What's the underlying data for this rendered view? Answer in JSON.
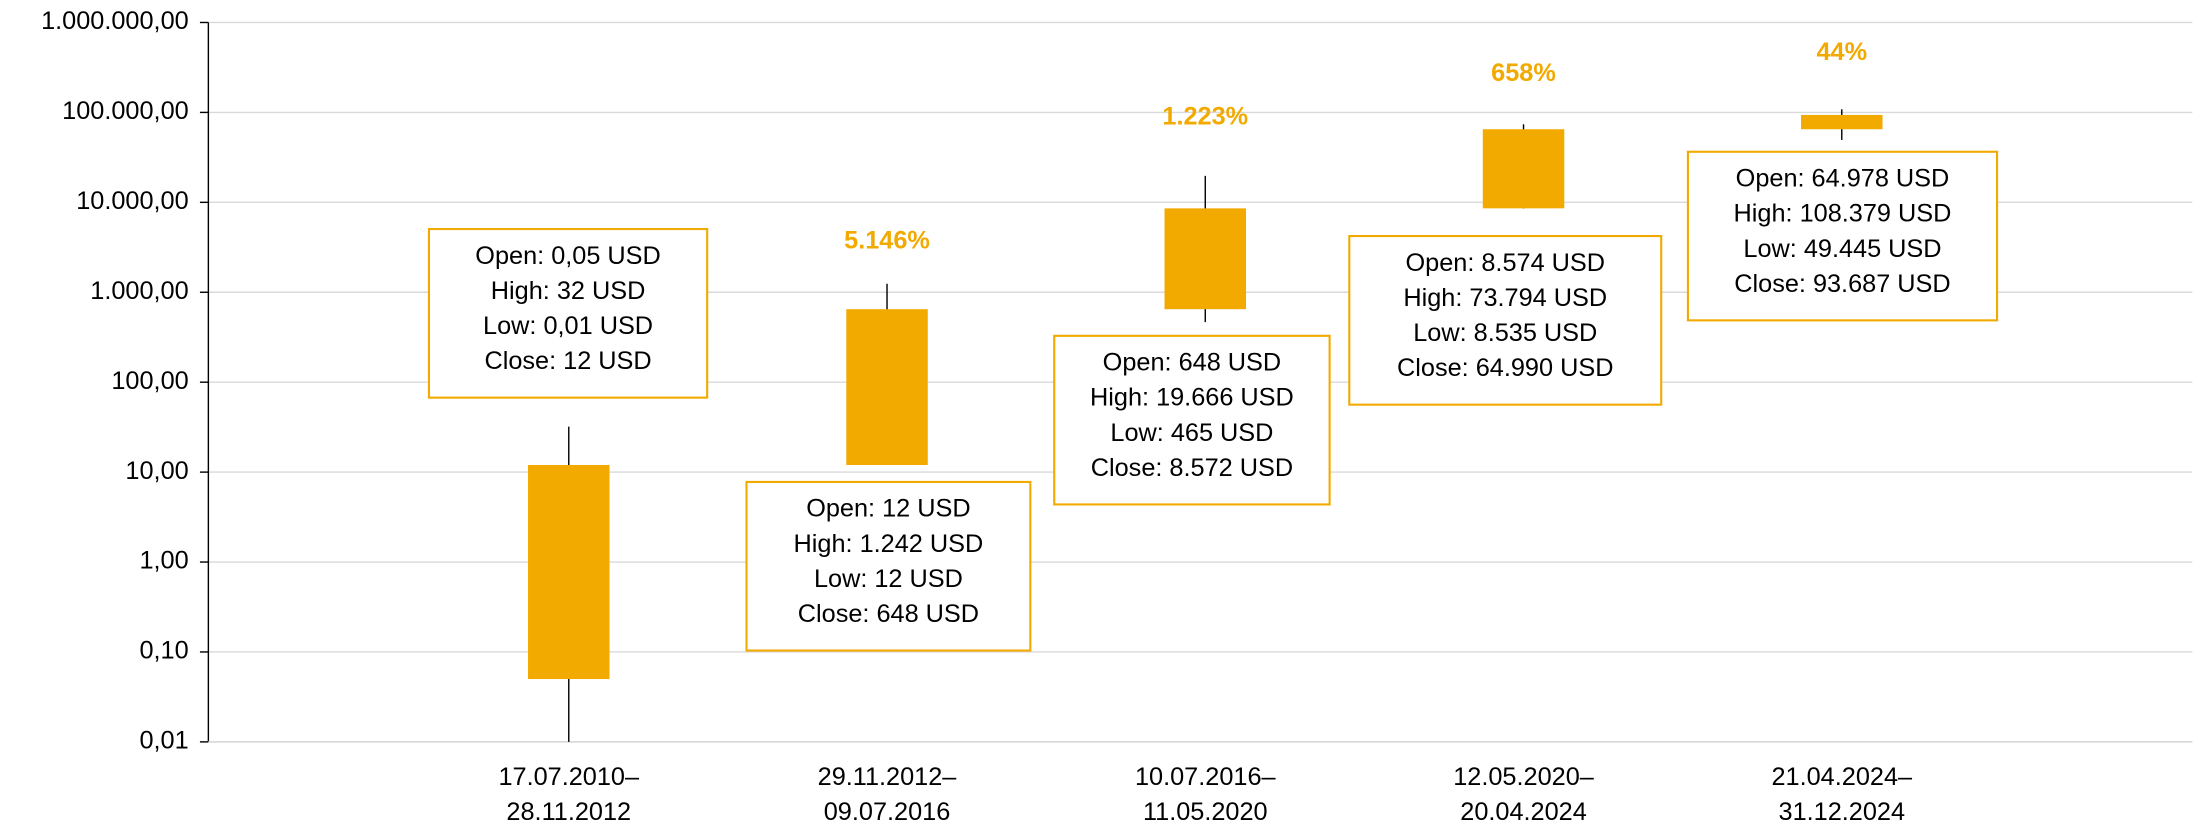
{
  "chart_data": {
    "type": "candlestick",
    "categories": [
      [
        "17.07.2010–",
        "28.11.2012"
      ],
      [
        "29.11.2012–",
        "09.07.2016"
      ],
      [
        "10.07.2016–",
        "11.05.2020"
      ],
      [
        "12.05.2020–",
        "20.04.2024"
      ],
      [
        "21.04.2024–",
        "31.12.2024"
      ]
    ],
    "open": [
      0.05,
      12,
      648,
      8574,
      64978
    ],
    "high": [
      32,
      1242,
      19666,
      73794,
      108379
    ],
    "low": [
      0.01,
      12,
      465,
      8535,
      49445
    ],
    "close": [
      12,
      648,
      8572,
      64990,
      93687
    ],
    "color": "#f2aa00",
    "change_labels": [
      null,
      "5.146%",
      "1.223%",
      "658%",
      "44%"
    ],
    "info_labels": [
      [
        "Open: 0,05 USD",
        "High: 32 USD",
        "Low: 0,01 USD",
        "Close: 12 USD"
      ],
      [
        "Open: 12 USD",
        "High: 1.242 USD",
        "Low: 12 USD",
        "Close: 648 USD"
      ],
      [
        "Open: 648 USD",
        "High: 19.666 USD",
        "Low: 465 USD",
        "Close: 8.572 USD"
      ],
      [
        "Open: 8.574 USD",
        "High: 73.794 USD",
        "Low: 8.535 USD",
        "Close: 64.990 USD"
      ],
      [
        "Open: 64.978 USD",
        "High: 108.379 USD",
        "Low: 49.445 USD",
        "Close: 93.687 USD"
      ]
    ],
    "ylim": [
      0.01,
      1000000
    ],
    "yticks": [
      {
        "value": 0.01,
        "label": "0,01"
      },
      {
        "value": 0.1,
        "label": "0,10"
      },
      {
        "value": 1,
        "label": "1,00"
      },
      {
        "value": 10,
        "label": "10,00"
      },
      {
        "value": 100,
        "label": "100,00"
      },
      {
        "value": 1000,
        "label": "1.000,00"
      },
      {
        "value": 10000,
        "label": "10.000,00"
      },
      {
        "value": 100000,
        "label": "100.000,00"
      },
      {
        "value": 1000000,
        "label": "1.000.000,00"
      }
    ],
    "log_scale": true,
    "grid": true
  }
}
